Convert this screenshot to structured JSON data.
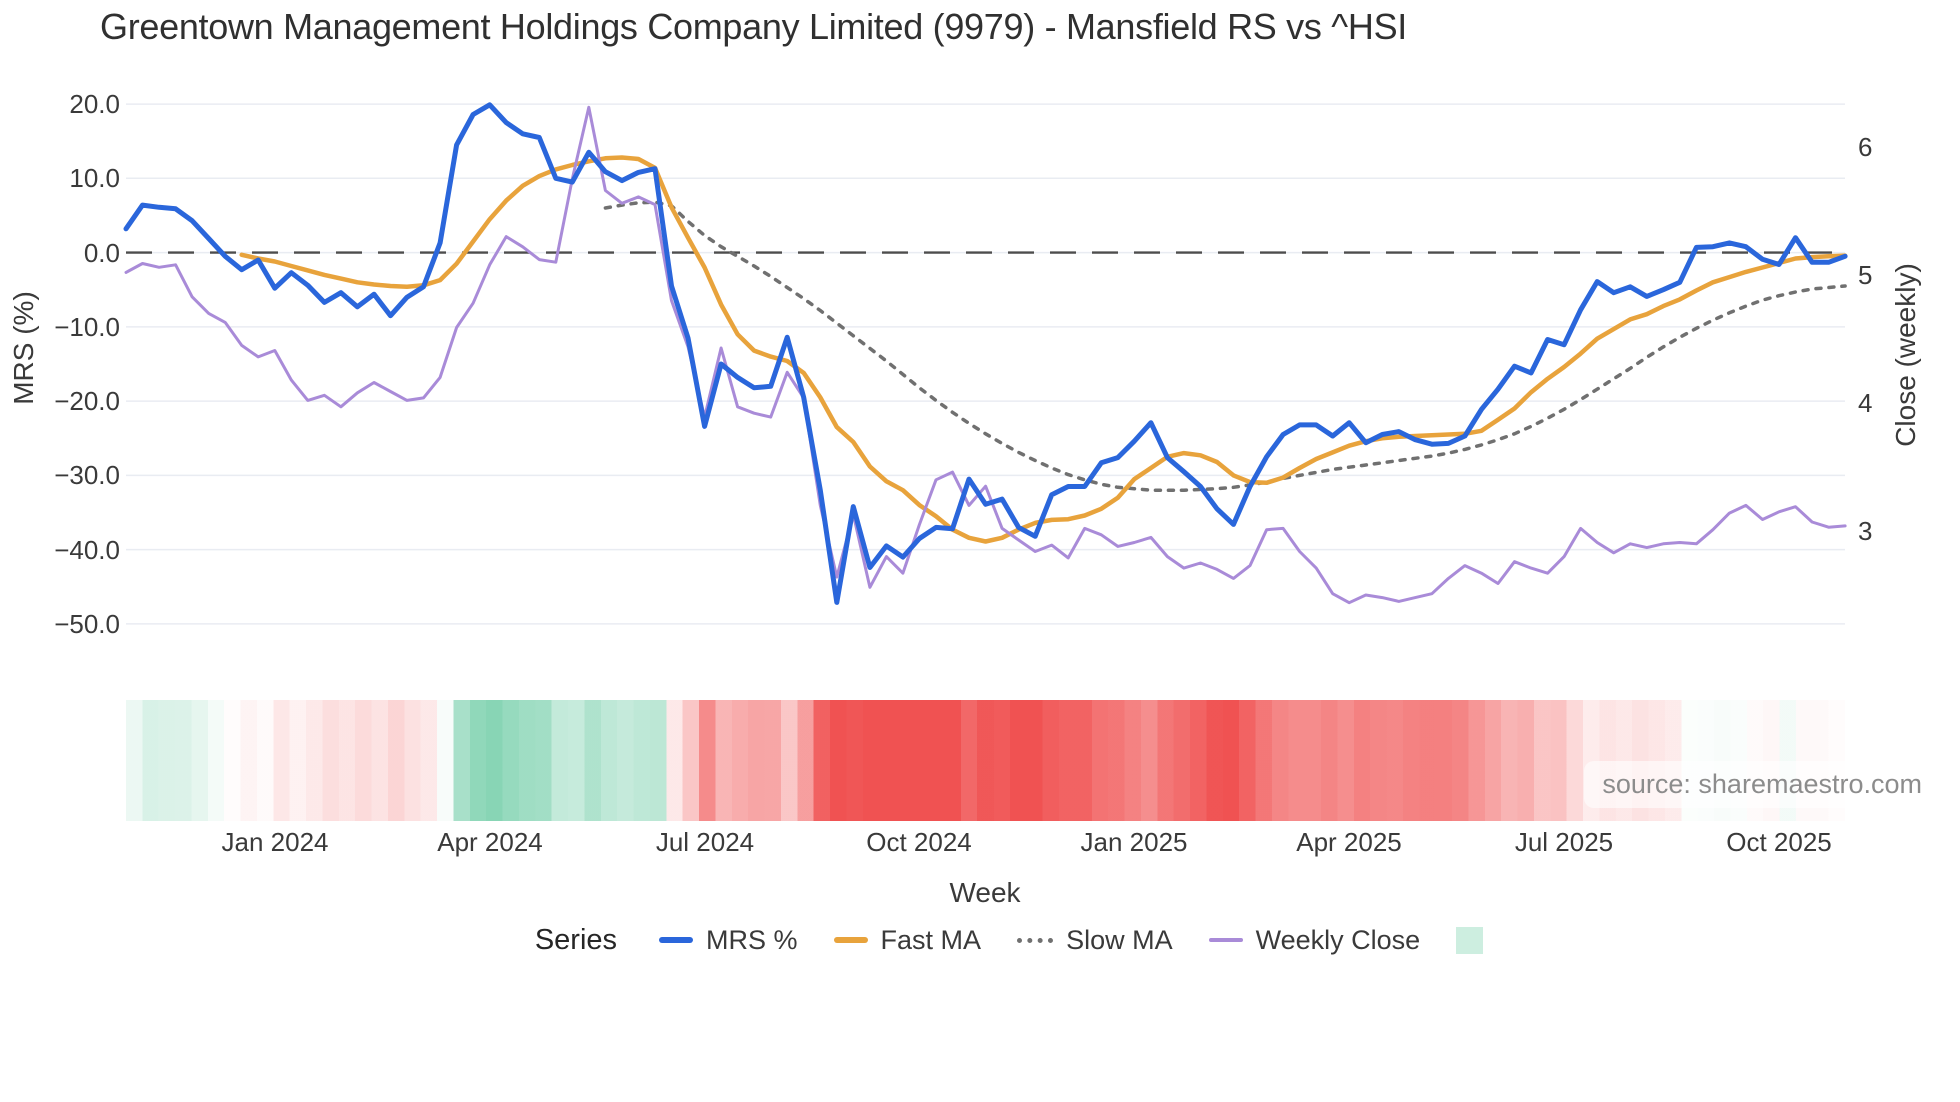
{
  "title": "Greentown Management Holdings Company Limited (9979) - Mansfield RS vs ^HSI",
  "source_note": "source: sharemaestro.com",
  "chart_data": {
    "type": "line",
    "title": "Greentown Management Holdings Company Limited (9979) - Mansfield RS vs ^HSI",
    "x_axis": {
      "label": "Week",
      "tick_labels": [
        "Jan 2024",
        "Apr 2024",
        "Jul 2024",
        "Oct 2024",
        "Jan 2025",
        "Apr 2025",
        "Jul 2025",
        "Oct 2025"
      ],
      "tick_weeks": [
        9,
        22,
        35,
        48,
        61,
        74,
        87,
        100
      ],
      "n_weeks": 105,
      "grid": false
    },
    "y_left": {
      "label": "MRS (%)",
      "ticks": [
        20,
        10,
        0,
        -10,
        -20,
        -30,
        -40,
        -50
      ],
      "tick_labels": [
        "20.0",
        "10.0",
        "0.0",
        "−10.0",
        "−20.0",
        "−30.0",
        "−40.0",
        "−50.0"
      ],
      "range": [
        -54,
        22
      ],
      "grid": true,
      "zero_line": {
        "style": "dashed",
        "color": "#4d4d4d"
      }
    },
    "y_right": {
      "label": "Close (weekly)",
      "ticks": [
        6,
        5,
        4,
        3
      ],
      "tick_labels": [
        "6",
        "5",
        "4",
        "3"
      ],
      "range": [
        2.3,
        6.4
      ],
      "grid": false
    },
    "legend": {
      "title": "Series",
      "position": "bottom-center",
      "entries": [
        {
          "label": "MRS %",
          "swatch": "line",
          "color": "#2a66db"
        },
        {
          "label": "Fast MA",
          "swatch": "line",
          "color": "#e8a33c"
        },
        {
          "label": "Slow MA",
          "swatch": "dotted",
          "color": "#707070"
        },
        {
          "label": "Weekly Close",
          "swatch": "line-thin",
          "color": "#a98bd8"
        },
        {
          "label": "",
          "swatch": "square",
          "color": "#cdeee0"
        }
      ]
    },
    "series": [
      {
        "name": "MRS %",
        "axis": "left",
        "color": "#2a66db",
        "style": "solid",
        "width": 5,
        "values": [
          3.2,
          6.4,
          6.1,
          5.9,
          4.3,
          1.9,
          -0.5,
          -2.3,
          -1.0,
          -4.8,
          -2.7,
          -4.4,
          -6.7,
          -5.4,
          -7.3,
          -5.6,
          -8.5,
          -6.0,
          -4.6,
          1.3,
          14.5,
          18.6,
          19.9,
          17.5,
          16.0,
          15.5,
          10.0,
          9.5,
          13.5,
          10.9,
          9.7,
          10.8,
          11.3,
          -4.5,
          -11.5,
          -23.4,
          -15.0,
          -16.8,
          -18.2,
          -18.0,
          -11.4,
          -19.5,
          -32.0,
          -47.1,
          -34.2,
          -42.4,
          -39.5,
          -41.0,
          -38.5,
          -37.0,
          -37.2,
          -30.5,
          -33.9,
          -33.2,
          -37.0,
          -38.2,
          -32.6,
          -31.5,
          -31.5,
          -28.3,
          -27.6,
          -25.4,
          -22.9,
          -27.6,
          -29.5,
          -31.5,
          -34.5,
          -36.6,
          -31.5,
          -27.5,
          -24.5,
          -23.2,
          -23.2,
          -24.7,
          -22.9,
          -25.6,
          -24.5,
          -24.1,
          -25.2,
          -25.8,
          -25.7,
          -24.7,
          -21.1,
          -18.4,
          -15.3,
          -16.2,
          -11.7,
          -12.4,
          -7.7,
          -3.9,
          -5.4,
          -4.6,
          -5.9,
          -5.0,
          -4.0,
          0.7,
          0.8,
          1.3,
          0.8,
          -0.9,
          -1.6,
          2.0,
          -1.3,
          -1.3,
          -0.5
        ]
      },
      {
        "name": "Fast MA",
        "axis": "left",
        "color": "#e8a33c",
        "style": "solid",
        "width": 4.5,
        "values": [
          null,
          null,
          null,
          null,
          null,
          null,
          null,
          -0.3,
          -0.8,
          -1.2,
          -1.8,
          -2.4,
          -3.0,
          -3.5,
          -4.0,
          -4.3,
          -4.5,
          -4.6,
          -4.4,
          -3.7,
          -1.5,
          1.5,
          4.5,
          7.0,
          9.0,
          10.3,
          11.2,
          11.8,
          12.3,
          12.7,
          12.8,
          12.6,
          11.4,
          6.1,
          2.0,
          -2.0,
          -7.0,
          -11.0,
          -13.2,
          -14.0,
          -14.6,
          -16.2,
          -19.5,
          -23.5,
          -25.5,
          -28.8,
          -30.8,
          -32.0,
          -34.0,
          -35.5,
          -37.3,
          -38.4,
          -38.9,
          -38.4,
          -37.3,
          -36.4,
          -36.0,
          -35.9,
          -35.4,
          -34.5,
          -33.0,
          -30.5,
          -29.0,
          -27.5,
          -27.0,
          -27.3,
          -28.2,
          -30.0,
          -30.9,
          -31.0,
          -30.3,
          -29.0,
          -27.8,
          -26.9,
          -26.0,
          -25.4,
          -25.0,
          -24.8,
          -24.7,
          -24.6,
          -24.5,
          -24.4,
          -24.0,
          -22.5,
          -21.0,
          -18.8,
          -17.0,
          -15.4,
          -13.6,
          -11.6,
          -10.3,
          -9.0,
          -8.3,
          -7.2,
          -6.3,
          -5.1,
          -4.0,
          -3.3,
          -2.6,
          -2.0,
          -1.4,
          -0.8,
          -0.6,
          -0.5,
          -0.4
        ]
      },
      {
        "name": "Slow MA",
        "axis": "left",
        "color": "#707070",
        "style": "dotted",
        "width": 3.5,
        "values": [
          null,
          null,
          null,
          null,
          null,
          null,
          null,
          null,
          null,
          null,
          null,
          null,
          null,
          null,
          null,
          null,
          null,
          null,
          null,
          null,
          null,
          null,
          null,
          null,
          null,
          null,
          null,
          null,
          null,
          6.0,
          6.4,
          6.7,
          6.8,
          6.3,
          4.2,
          2.3,
          0.8,
          -0.5,
          -1.8,
          -3.2,
          -4.7,
          -6.2,
          -7.8,
          -9.5,
          -11.2,
          -12.9,
          -14.6,
          -16.4,
          -18.2,
          -19.9,
          -21.5,
          -23.0,
          -24.4,
          -25.7,
          -26.9,
          -28.0,
          -29.0,
          -29.9,
          -30.6,
          -31.2,
          -31.6,
          -31.8,
          -32.0,
          -32.0,
          -32.0,
          -31.9,
          -31.8,
          -31.6,
          -31.3,
          -30.9,
          -30.4,
          -30.0,
          -29.6,
          -29.2,
          -28.9,
          -28.6,
          -28.3,
          -28.0,
          -27.7,
          -27.4,
          -27.0,
          -26.5,
          -25.9,
          -25.2,
          -24.4,
          -23.4,
          -22.3,
          -21.1,
          -19.8,
          -18.4,
          -17.0,
          -15.6,
          -14.1,
          -12.7,
          -11.4,
          -10.2,
          -9.1,
          -8.1,
          -7.2,
          -6.4,
          -5.8,
          -5.3,
          -4.9,
          -4.7,
          -4.5
        ]
      },
      {
        "name": "Weekly Close",
        "axis": "right",
        "color": "#a98bd8",
        "style": "solid",
        "width": 3,
        "values": [
          5.02,
          5.09,
          5.06,
          5.08,
          4.83,
          4.7,
          4.63,
          4.45,
          4.36,
          4.41,
          4.18,
          4.02,
          4.06,
          3.97,
          4.08,
          4.16,
          4.09,
          4.02,
          4.04,
          4.2,
          4.59,
          4.78,
          5.08,
          5.3,
          5.22,
          5.12,
          5.1,
          5.75,
          6.31,
          5.66,
          5.56,
          5.61,
          5.55,
          4.8,
          4.44,
          3.89,
          4.43,
          3.97,
          3.92,
          3.89,
          4.24,
          4.04,
          3.2,
          2.64,
          3.13,
          2.56,
          2.8,
          2.67,
          3.05,
          3.4,
          3.46,
          3.2,
          3.35,
          3.02,
          2.93,
          2.84,
          2.89,
          2.79,
          3.02,
          2.97,
          2.88,
          2.91,
          2.95,
          2.8,
          2.71,
          2.75,
          2.7,
          2.63,
          2.73,
          3.01,
          3.02,
          2.84,
          2.71,
          2.51,
          2.44,
          2.5,
          2.48,
          2.45,
          2.48,
          2.51,
          2.63,
          2.73,
          2.67,
          2.59,
          2.76,
          2.71,
          2.67,
          2.8,
          3.02,
          2.91,
          2.83,
          2.9,
          2.87,
          2.9,
          2.91,
          2.9,
          3.01,
          3.14,
          3.2,
          3.09,
          3.15,
          3.19,
          3.07,
          3.03,
          3.04
        ]
      }
    ],
    "heatmap_strip": {
      "source_series": "MRS %",
      "positive_color_rgb": [
        46,
        181,
        125
      ],
      "negative_color_rgb": [
        240,
        82,
        82
      ],
      "max_abs_value": 35
    },
    "grid_color": "#e9ecf2"
  }
}
